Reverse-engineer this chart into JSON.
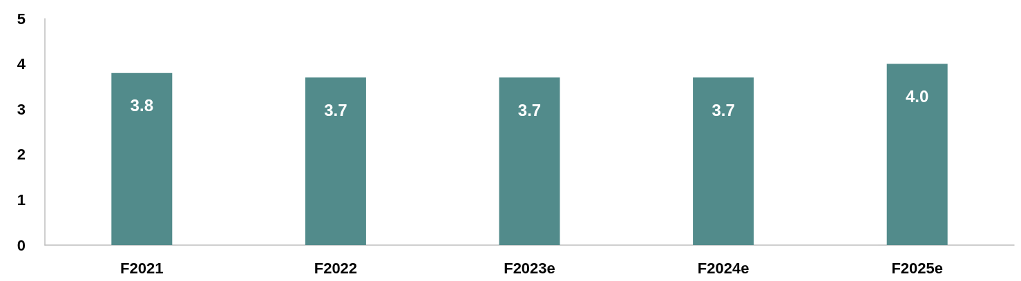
{
  "chart_data": {
    "type": "bar",
    "categories": [
      "F2021",
      "F2022",
      "F2023e",
      "F2024e",
      "F2025e"
    ],
    "values": [
      3.8,
      3.7,
      3.7,
      3.7,
      4.0
    ],
    "value_labels": [
      "3.8",
      "3.7",
      "3.7",
      "3.7",
      "4.0"
    ],
    "color": "#528b8b",
    "ylim": [
      0,
      5
    ],
    "yticks": [
      0,
      1,
      2,
      3,
      4,
      5
    ],
    "grid": false
  }
}
